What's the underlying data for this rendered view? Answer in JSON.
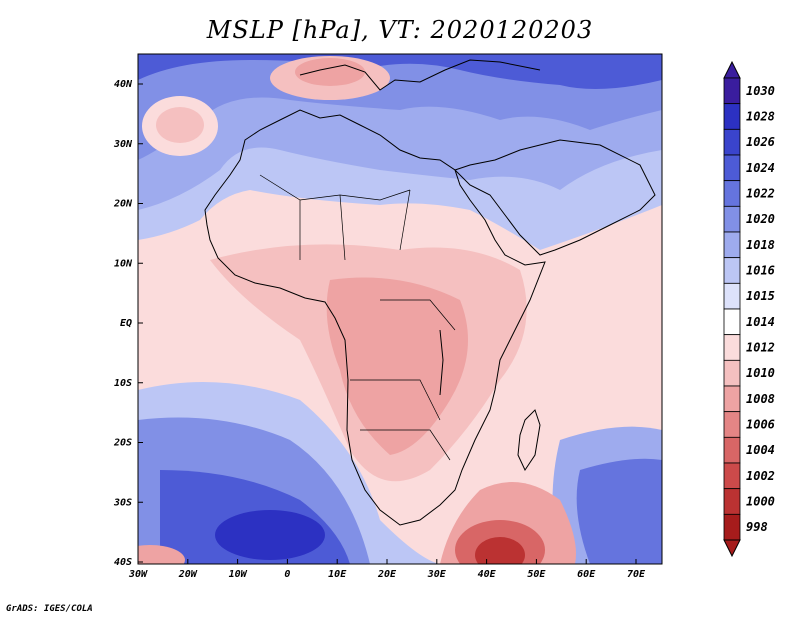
{
  "title": "MSLP [hPa], VT: 2020120203",
  "credit": "GrADS: IGES/COLA",
  "lat_labels": [
    "40N",
    "30N",
    "20N",
    "10N",
    "EQ",
    "10S",
    "20S",
    "30S",
    "40S"
  ],
  "lon_labels": [
    "30W",
    "20W",
    "10W",
    "0",
    "10E",
    "20E",
    "30E",
    "40E",
    "50E",
    "60E",
    "70E"
  ],
  "colorbar": {
    "levels": [
      "1030",
      "1028",
      "1026",
      "1024",
      "1022",
      "1020",
      "1018",
      "1016",
      "1015",
      "1014",
      "1012",
      "1010",
      "1008",
      "1006",
      "1004",
      "1002",
      "1000",
      "998"
    ],
    "colors": [
      "#3a1d9e",
      "#2c31c2",
      "#3a44cc",
      "#4d5bd6",
      "#6574de",
      "#8190e6",
      "#9eabee",
      "#bcc6f5",
      "#dde2fb",
      "#ffffff",
      "#fbdcdc",
      "#f5c0c0",
      "#eea3a3",
      "#e48585",
      "#d86666",
      "#cc4a4a",
      "#bb3232",
      "#a61c1c"
    ]
  },
  "map": {
    "ocean_colors": {
      "high": "#6f7fe0",
      "mid": "#bcc6f5",
      "low_sub": "#fbdcdc",
      "high_south": "#3b4fcc"
    },
    "land_colors": {
      "sahara": "#aeb8f1",
      "central": "#eea3a3",
      "east": "#f5c0c0"
    }
  }
}
